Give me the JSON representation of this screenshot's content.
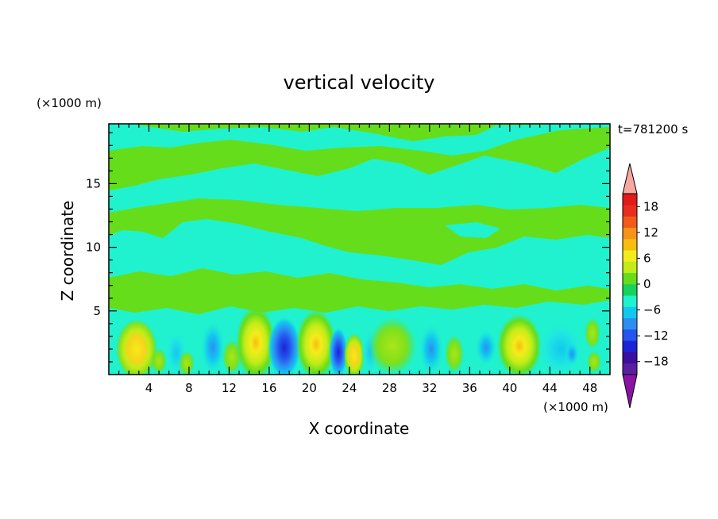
{
  "chart_data": {
    "type": "heatmap",
    "title": "vertical velocity",
    "xlabel": "X coordinate",
    "ylabel": "Z coordinate",
    "x_unit": "(×1000 m)",
    "y_unit": "(×1000 m)",
    "time_label": "t=781200 s",
    "xlim": [
      0,
      50
    ],
    "ylim": [
      0,
      19.7
    ],
    "x_ticks": [
      4,
      8,
      12,
      16,
      20,
      24,
      28,
      32,
      36,
      40,
      44,
      48
    ],
    "y_ticks": [
      5,
      10,
      15
    ],
    "colorbar": {
      "levels": [
        -21,
        -18,
        -15,
        -12,
        -9,
        -6,
        -3,
        0,
        3,
        6,
        9,
        12,
        15,
        18,
        21
      ],
      "tick_values": [
        -18,
        -12,
        -6,
        0,
        6,
        12,
        18
      ],
      "tick_labels": [
        "−18",
        "−12",
        "−6",
        "0",
        "6",
        "12",
        "18"
      ],
      "colors": [
        "#5a1f9e",
        "#3b0fa0",
        "#1c24d6",
        "#2456ef",
        "#2b8ff2",
        "#12c8f0",
        "#20f2cf",
        "#17d25c",
        "#66dd1a",
        "#c2ec19",
        "#f4ec1a",
        "#f6be0f",
        "#f7921a",
        "#f25a19",
        "#e82e1e",
        "#e21a1a"
      ],
      "under_color": "#8a13a6",
      "over_color": "#f7a8a0"
    },
    "features": [
      {
        "x": 2.8,
        "z": 2.3,
        "w_max": 8
      },
      {
        "x": 14.6,
        "z": 2.7,
        "w_max": 11
      },
      {
        "x": 17.7,
        "z": 2.2,
        "w_min": -14
      },
      {
        "x": 20.9,
        "z": 2.4,
        "w_max": 11
      },
      {
        "x": 23.4,
        "z": 2.0,
        "w_min": -11
      },
      {
        "x": 24.9,
        "z": 1.7,
        "w_max": 6
      },
      {
        "x": 28.3,
        "z": 2.5,
        "w_max": 5
      },
      {
        "x": 32.5,
        "z": 2.0,
        "w_min": -6
      },
      {
        "x": 40.8,
        "z": 2.3,
        "w_max": 11
      },
      {
        "x": 46.0,
        "z": 2.0,
        "w_min": -8
      },
      {
        "x": 48.2,
        "z": 3.0,
        "w_max": 5
      }
    ]
  }
}
